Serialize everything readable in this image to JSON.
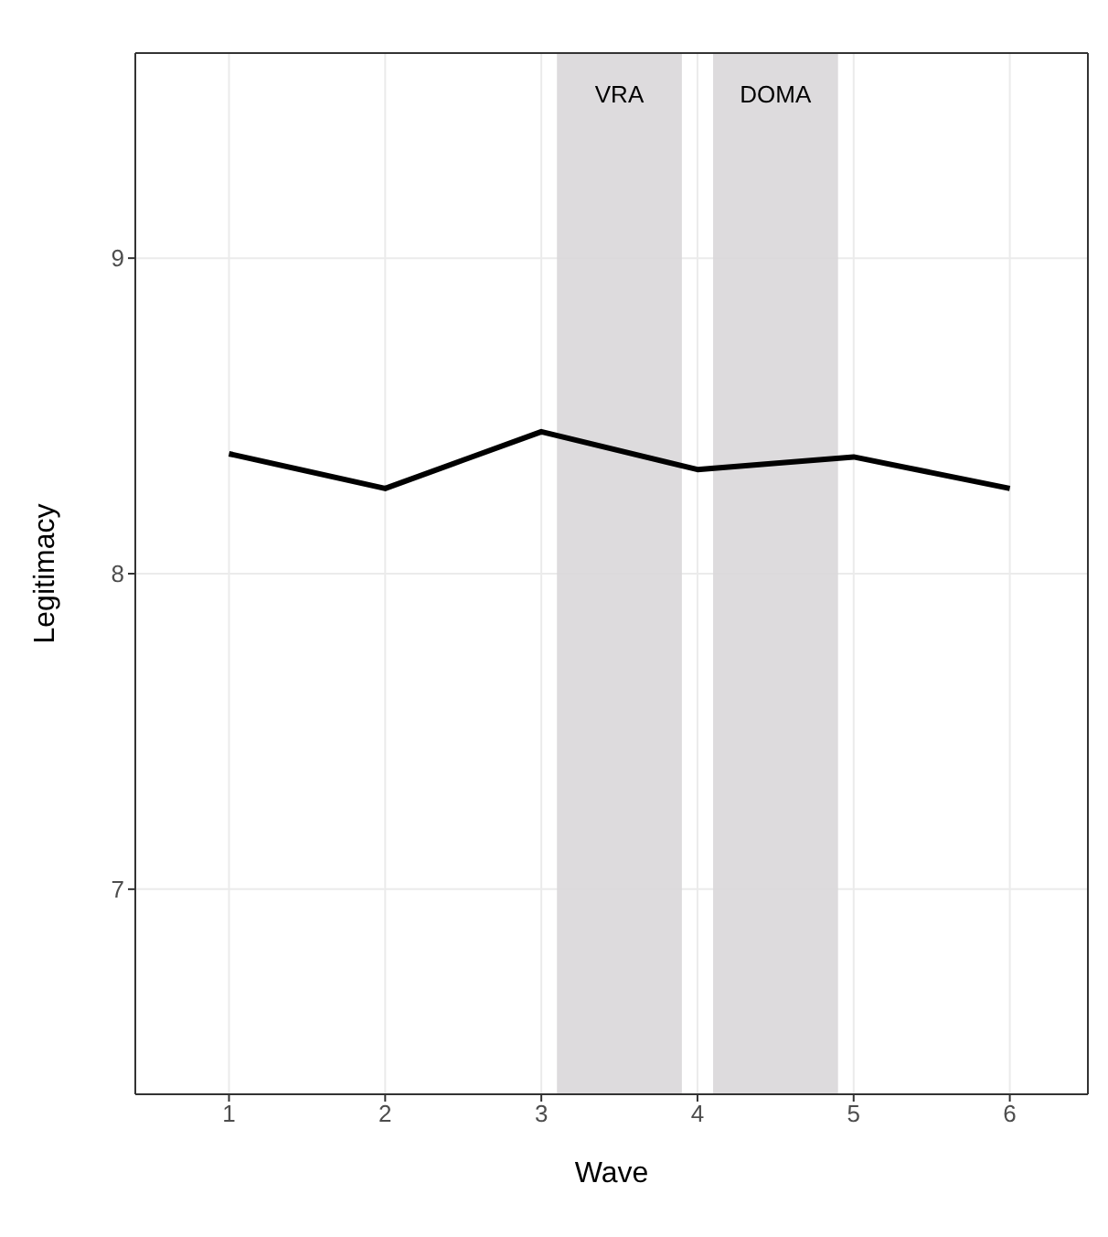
{
  "chart_data": {
    "type": "line",
    "xlabel": "Wave",
    "ylabel": "Legitimacy",
    "x": [
      1,
      2,
      3,
      4,
      5,
      6
    ],
    "series": [
      {
        "color": "#000000",
        "values": [
          8.38,
          8.27,
          8.45,
          8.33,
          8.37,
          8.27
        ]
      }
    ],
    "xlim": [
      0.4,
      6.5
    ],
    "xticks": [
      1,
      2,
      3,
      4,
      5,
      6
    ],
    "ylim": [
      6.35,
      9.65
    ],
    "yticks": [
      7,
      8,
      9
    ],
    "bands": [
      {
        "axis": "x",
        "from": 3.1,
        "to": 3.9,
        "label": "VRA",
        "color": "#d9d7d9"
      },
      {
        "axis": "x",
        "from": 4.1,
        "to": 4.9,
        "label": "DOMA",
        "color": "#d9d7d9"
      }
    ],
    "grid": true,
    "marker": "none",
    "line_style": "solid"
  }
}
